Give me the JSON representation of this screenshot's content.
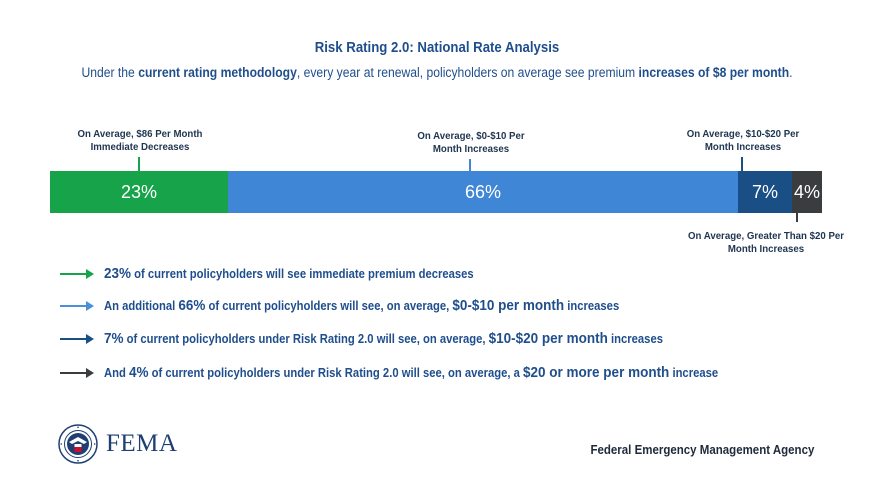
{
  "title": "Risk Rating 2.0: National Rate Analysis",
  "subtitle": {
    "p1": "Under the ",
    "b1": "current rating methodology",
    "p2": ", every year at renewal, policyholders on average see premium ",
    "b2": "increases of $8 per month",
    "p3": "."
  },
  "chart_data": {
    "type": "bar",
    "orientation": "horizontal-stacked",
    "categories": [
      "Immediate Decreases",
      "$0-$10 Increases",
      "$10-$20 Increases",
      "Greater Than $20 Increases"
    ],
    "values": [
      23,
      66,
      7,
      4
    ],
    "value_labels": [
      "23%",
      "66%",
      "7%",
      "4%"
    ],
    "colors": [
      "#17a34a",
      "#3f86d6",
      "#1a4f86",
      "#3a3d40"
    ],
    "callouts": [
      {
        "line1": "On Average, $86 Per Month",
        "line2": "Immediate Decreases"
      },
      {
        "line1": "On Average, $0-$10 Per",
        "line2": "Month Increases"
      },
      {
        "line1": "On Average, $10-$20 Per",
        "line2": "Month Increases"
      },
      {
        "line1": "On Average, Greater Than $20 Per",
        "line2": "Month Increases"
      }
    ]
  },
  "bullets": [
    {
      "p1": "",
      "b1": "23%",
      "p2": " of current policyholders will see immediate premium decreases",
      "b2": "",
      "p3": "",
      "arrow_color": "#17a34a"
    },
    {
      "p1": "An additional ",
      "b1": "66%",
      "p2": " of current policyholders will see, on average, ",
      "b2": "$0-$10 per month",
      "p3": " increases",
      "arrow_color": "#4a90d9"
    },
    {
      "p1": "",
      "b1": "7%",
      "p2": " of current policyholders under Risk Rating 2.0 will see, on average, ",
      "b2": "$10-$20 per month",
      "p3": " increases",
      "arrow_color": "#1a4f86"
    },
    {
      "p1": "And ",
      "b1": "4%",
      "p2": " of current policyholders under Risk Rating 2.0 will see, on average, a ",
      "b2": "$20 or more per month",
      "p3": " increase",
      "arrow_color": "#3a3d40"
    }
  ],
  "footer": {
    "logo_text": "FEMA",
    "seal_icon": "dhs-seal-icon",
    "agency": "Federal Emergency Management Agency"
  }
}
